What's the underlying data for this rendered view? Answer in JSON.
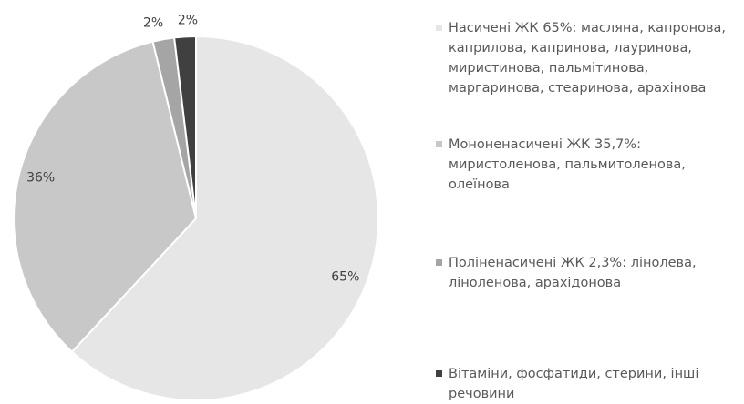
{
  "chart_data": {
    "type": "pie",
    "series": [
      {
        "name": "Насичені ЖК 65%: масляна, капронова, каприлова, капринова, лауринова, миристинова, пальмітинова, маргаринова, стеаринова, арахінова",
        "color": "#e6e6e6",
        "values": [
          65
        ],
        "value_labels": [
          "65%"
        ]
      },
      {
        "name": "Мононенасичені ЖК 35,7%: миристоленова, пальмитоленова, олеїнова",
        "color": "#c8c8c8",
        "values": [
          36
        ],
        "value_labels": [
          "36%"
        ]
      },
      {
        "name": "Поліненасичені ЖК 2,3%: лінолева, ліноленова, арахідонова",
        "color": "#a5a5a5",
        "values": [
          2
        ],
        "value_labels": [
          "2%"
        ]
      },
      {
        "name": "Вітаміни, фосфатиди, стерини, інші речовини",
        "color": "#404040",
        "values": [
          2
        ],
        "value_labels": [
          "2%"
        ]
      }
    ]
  }
}
